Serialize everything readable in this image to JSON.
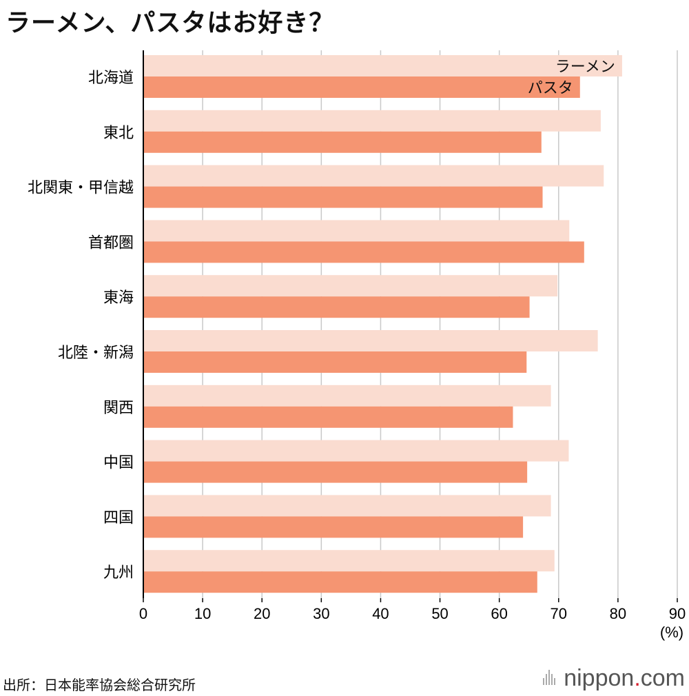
{
  "title": "ラーメン、パスタはお好き？",
  "source": "出所：日本能率協会総合研究所",
  "brand": {
    "name": "nippon",
    "dot": ".",
    "suffix": "com",
    "logo_icon": "sound-bars-icon"
  },
  "chart_data": {
    "type": "bar",
    "orientation": "horizontal",
    "categories": [
      "北海道",
      "東北",
      "北関東・甲信越",
      "首都圏",
      "東海",
      "北陸・新潟",
      "関西",
      "中国",
      "四国",
      "九州"
    ],
    "series": [
      {
        "name": "ラーメン",
        "color": "#fadcd0",
        "values": [
          80.7,
          77.1,
          77.6,
          71.8,
          69.8,
          76.6,
          68.7,
          71.7,
          68.7,
          69.3
        ]
      },
      {
        "name": "パスタ",
        "color": "#f59572",
        "values": [
          73.6,
          67.1,
          67.3,
          74.3,
          65.1,
          64.6,
          62.3,
          64.7,
          64.0,
          66.4
        ]
      }
    ],
    "xticks": [
      "0",
      "10",
      "20",
      "30",
      "40",
      "50",
      "60",
      "70",
      "80",
      "90"
    ],
    "xlim": [
      0,
      90
    ],
    "unit_label": "(%)",
    "grid": true
  }
}
